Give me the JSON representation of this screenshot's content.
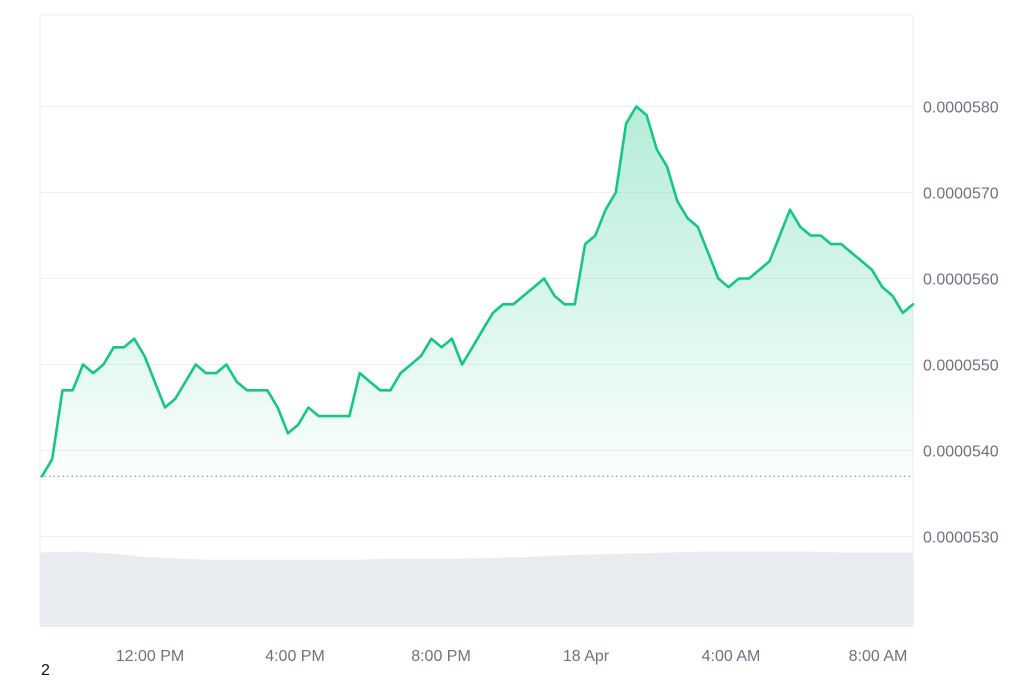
{
  "chart_data": {
    "type": "area",
    "title": "",
    "xlabel": "",
    "ylabel": "",
    "y_ticks": [
      "0.0000530",
      "0.0000540",
      "0.0000550",
      "0.0000560",
      "0.0000570",
      "0.0000580"
    ],
    "x_ticks": [
      "12:00 PM",
      "4:00 PM",
      "8:00 PM",
      "18 Apr",
      "4:00 AM",
      "8:00 AM"
    ],
    "ylim": [
      5.19e-05,
      5.91e-05
    ],
    "grid": true,
    "baseline_dotted": 5.37e-05,
    "colors": {
      "line": "#16c784",
      "fill": "#16c784",
      "volume": "#e8ebf0",
      "grid": "#eef0f3",
      "axis_text": "#6b7280"
    },
    "series": [
      {
        "values": [
          5.37e-05,
          5.39e-05,
          5.47e-05,
          5.47e-05,
          5.5e-05,
          5.49e-05,
          5.5e-05,
          5.52e-05,
          5.52e-05,
          5.53e-05,
          5.51e-05,
          5.48e-05,
          5.45e-05,
          5.46e-05,
          5.48e-05,
          5.5e-05,
          5.49e-05,
          5.49e-05,
          5.5e-05,
          5.48e-05,
          5.47e-05,
          5.47e-05,
          5.47e-05,
          5.45e-05,
          5.42e-05,
          5.43e-05,
          5.45e-05,
          5.44e-05,
          5.44e-05,
          5.44e-05,
          5.44e-05,
          5.49e-05,
          5.48e-05,
          5.47e-05,
          5.47e-05,
          5.49e-05,
          5.5e-05,
          5.51e-05,
          5.53e-05,
          5.52e-05,
          5.53e-05,
          5.5e-05,
          5.52e-05,
          5.54e-05,
          5.56e-05,
          5.57e-05,
          5.57e-05,
          5.58e-05,
          5.59e-05,
          5.6e-05,
          5.58e-05,
          5.57e-05,
          5.57e-05,
          5.64e-05,
          5.65e-05,
          5.68e-05,
          5.7e-05,
          5.78e-05,
          5.8e-05,
          5.79e-05,
          5.75e-05,
          5.73e-05,
          5.69e-05,
          5.67e-05,
          5.66e-05,
          5.63e-05,
          5.6e-05,
          5.59e-05,
          5.6e-05,
          5.6e-05,
          5.61e-05,
          5.62e-05,
          5.65e-05,
          5.68e-05,
          5.66e-05,
          5.65e-05,
          5.65e-05,
          5.64e-05,
          5.64e-05,
          5.63e-05,
          5.62e-05,
          5.61e-05,
          5.59e-05,
          5.58e-05,
          5.56e-05,
          5.57e-05
        ]
      }
    ],
    "volume_profile": [
      0.65,
      0.66,
      0.64,
      0.6,
      0.58,
      0.57,
      0.57,
      0.57,
      0.57,
      0.57,
      0.58,
      0.58,
      0.58,
      0.59,
      0.6,
      0.62,
      0.63,
      0.64,
      0.65,
      0.66,
      0.66,
      0.66,
      0.66,
      0.65,
      0.65,
      0.65
    ],
    "corner_label": "2"
  }
}
